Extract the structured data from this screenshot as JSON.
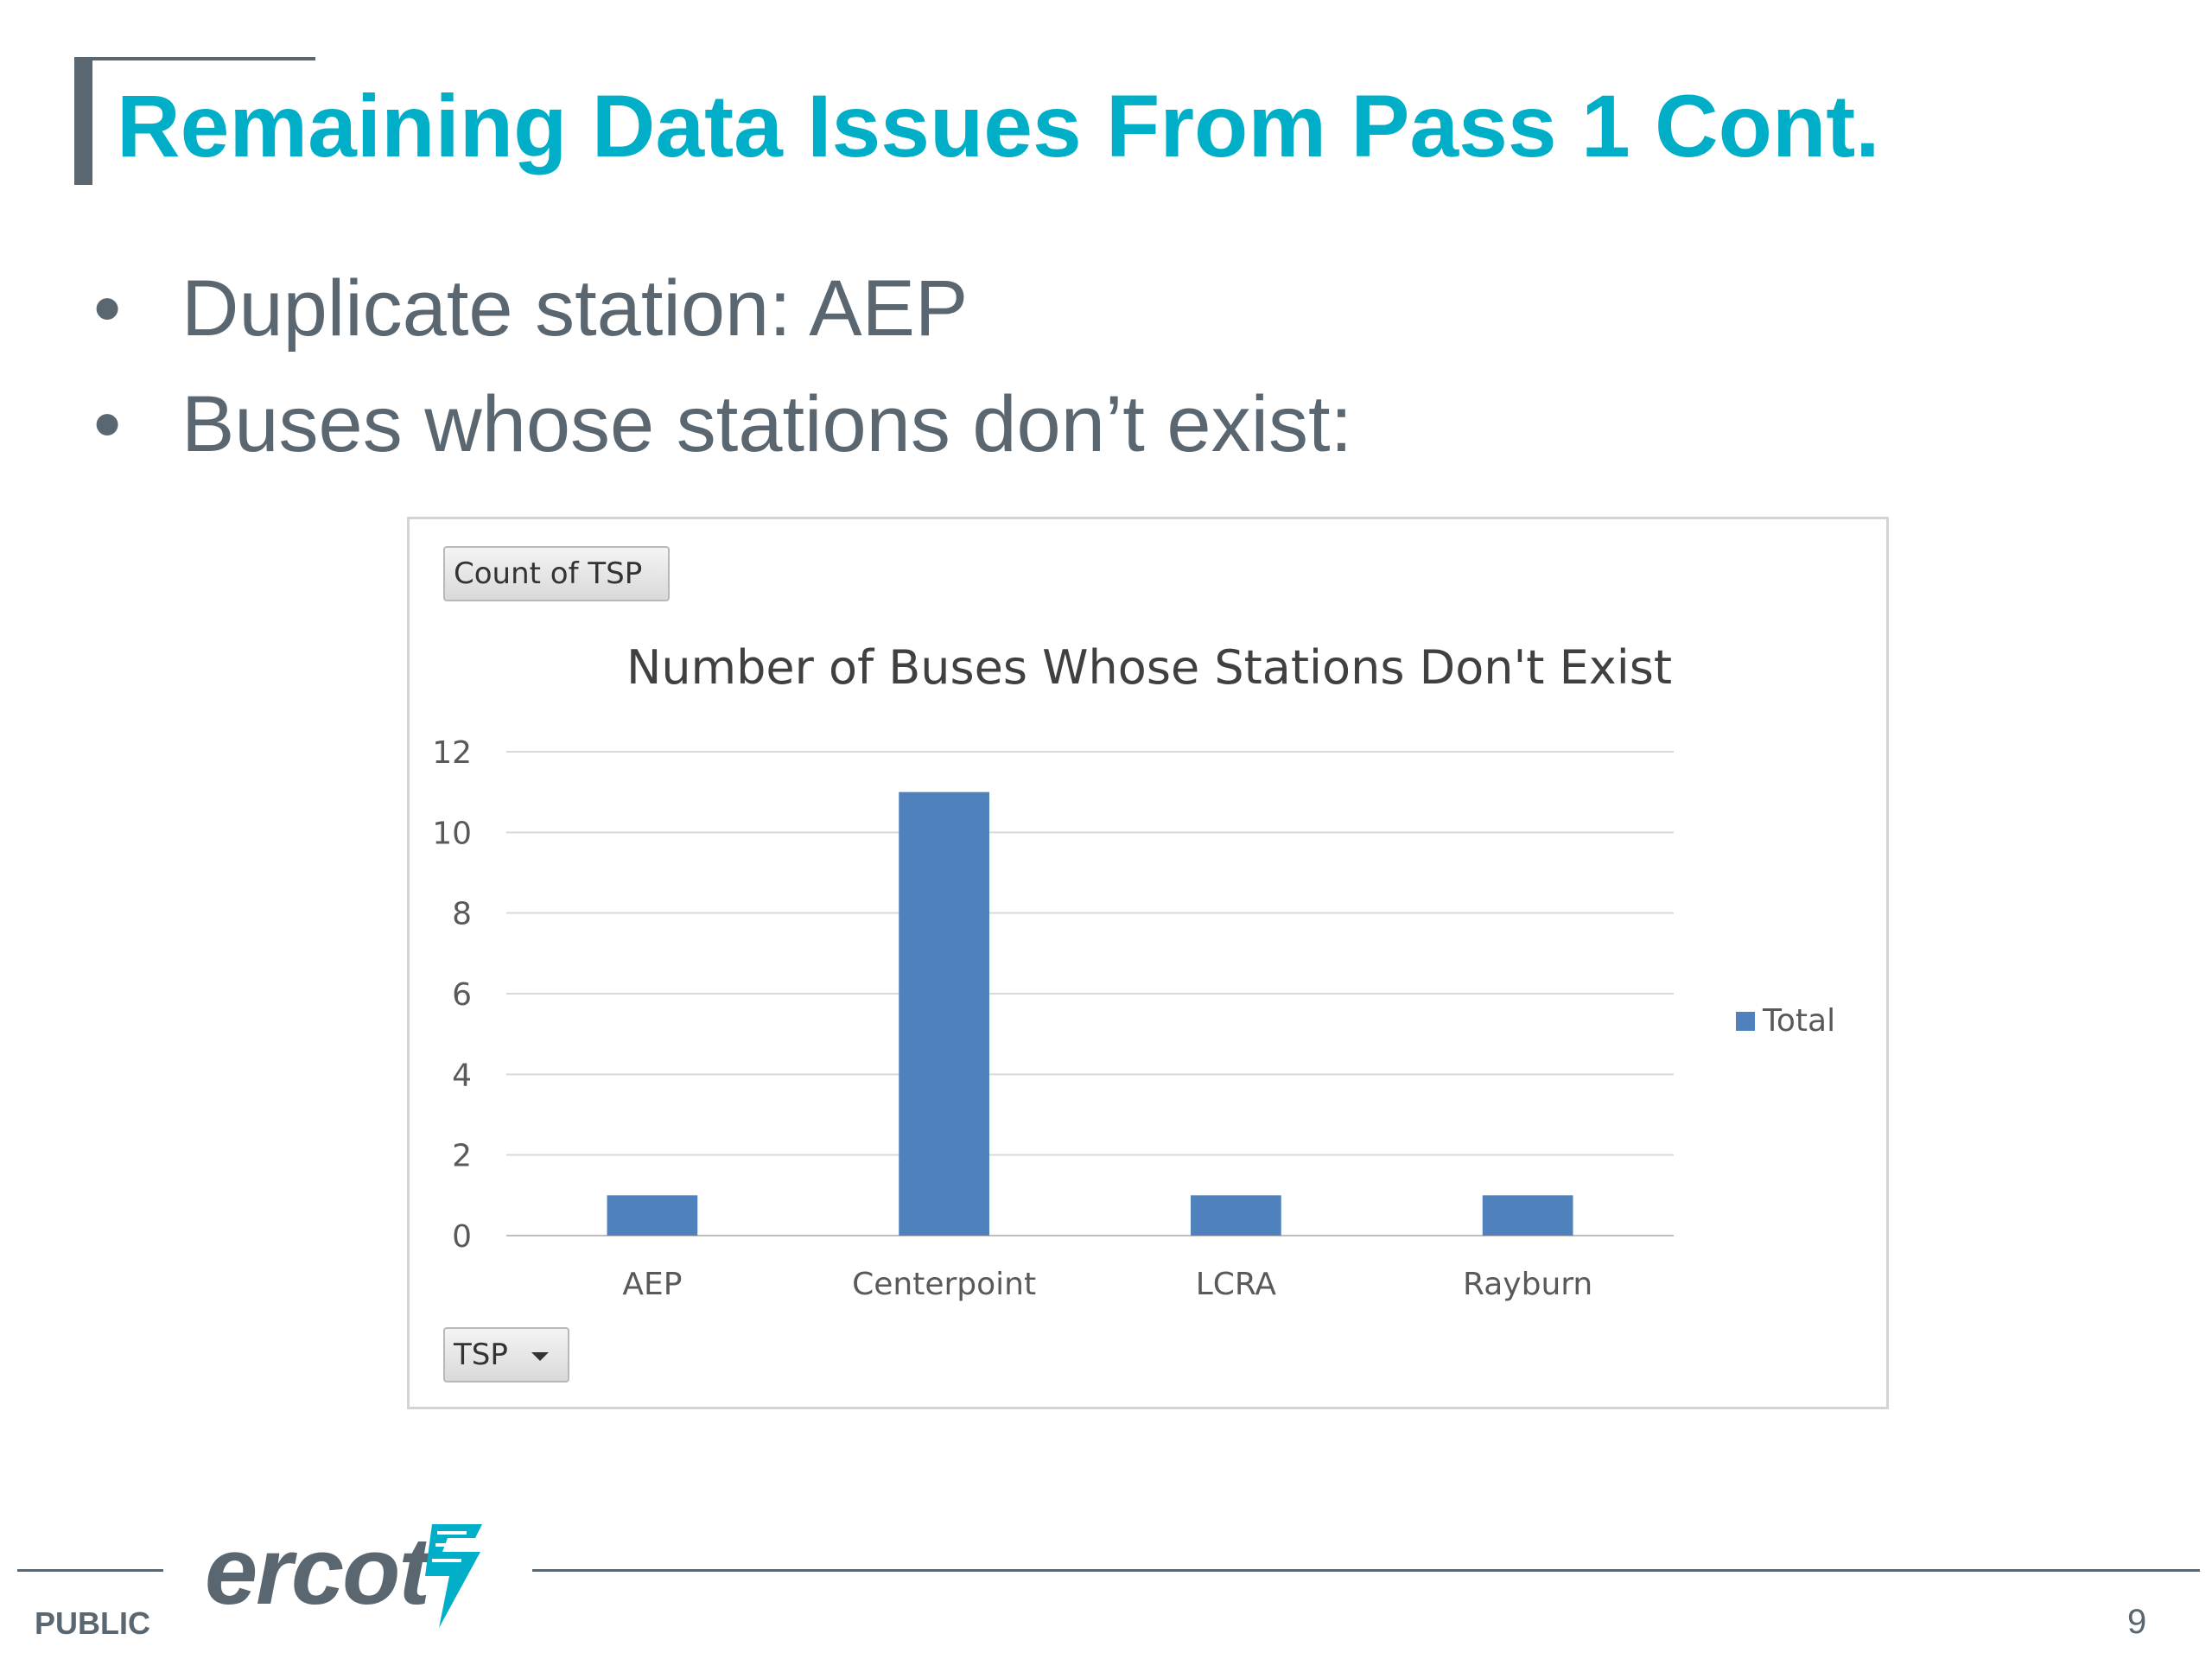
{
  "slide": {
    "title": "Remaining Data Issues From Pass 1 Cont.",
    "bullets": [
      "Duplicate station: AEP",
      "Buses whose stations don’t exist:"
    ],
    "bullet_glyph": "•"
  },
  "pivot": {
    "value_field": "Count of TSP",
    "axis_field": "TSP"
  },
  "chart_data": {
    "type": "bar",
    "title": "Number of Buses Whose Stations Don't Exist",
    "categories": [
      "AEP",
      "Centerpoint",
      "LCRA",
      "Rayburn"
    ],
    "series": [
      {
        "name": "Total",
        "values": [
          1,
          11,
          1,
          1
        ],
        "color": "#4f81bd"
      }
    ],
    "ylim": [
      0,
      12
    ],
    "yticks": [
      0,
      2,
      4,
      6,
      8,
      10,
      12
    ],
    "xlabel": "",
    "ylabel": "",
    "grid": true,
    "legend_position": "right"
  },
  "footer": {
    "classification": "PUBLIC",
    "logo_text": "ercot",
    "page_number": "9"
  },
  "colors": {
    "title": "#00aec7",
    "text": "#5b6770",
    "bar": "#4f81bd",
    "grid": "#d9d9d9"
  }
}
